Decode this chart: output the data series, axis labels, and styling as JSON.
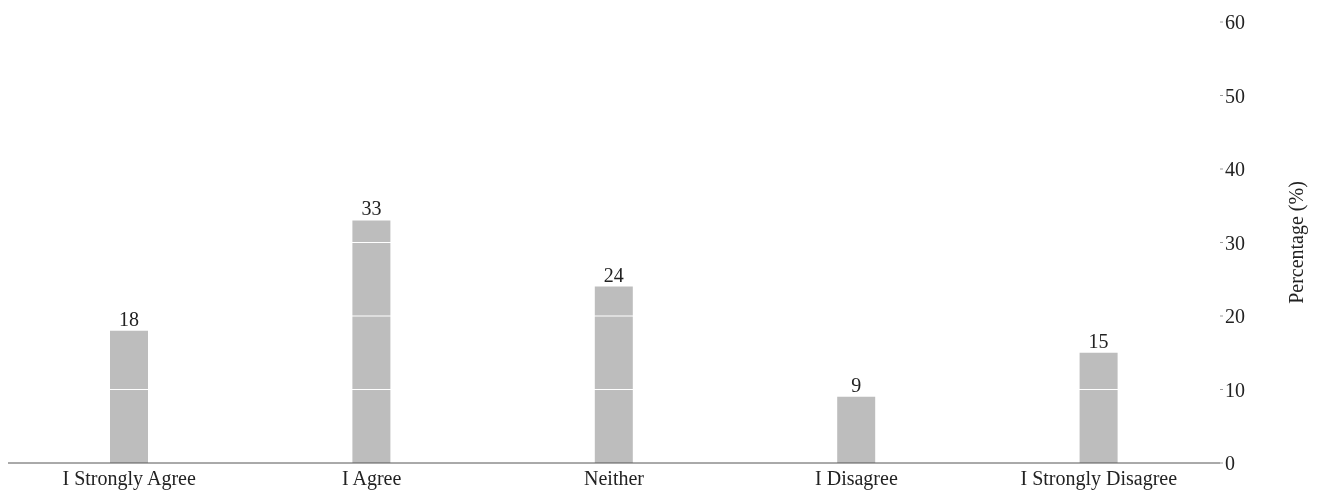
{
  "chart_data": {
    "type": "bar",
    "ylabel": "Percentage (%)",
    "categories": [
      "I Strongly Agree",
      "I Agree",
      "Neither",
      "I Disagree",
      "I Strongly Disagree"
    ],
    "values": [
      18,
      33,
      24,
      9,
      15
    ],
    "color": "#bdbdbd",
    "ylim": [
      0,
      60
    ],
    "yticks": [
      0,
      10,
      20,
      30,
      40,
      50,
      60
    ],
    "grid": "y",
    "data_labels": true
  }
}
